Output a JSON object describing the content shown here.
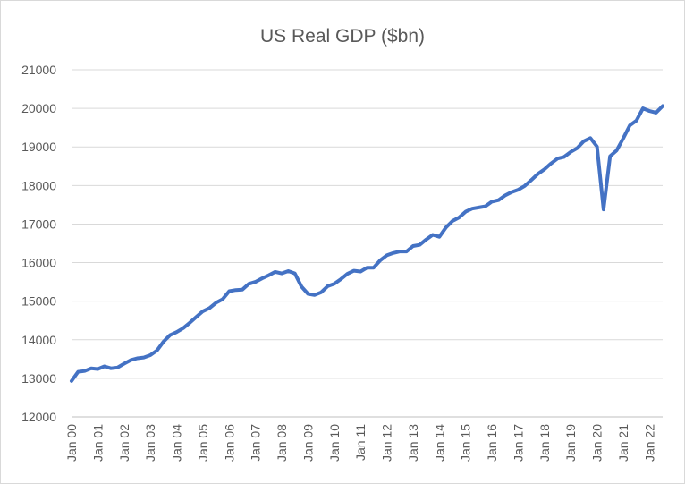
{
  "chart_data": {
    "type": "line",
    "title": "US Real GDP ($bn)",
    "xlabel": "",
    "ylabel": "",
    "ylim": [
      12000,
      21000
    ],
    "yticks": [
      12000,
      13000,
      14000,
      15000,
      16000,
      17000,
      18000,
      19000,
      20000,
      21000
    ],
    "xtick_labels": [
      "Jan 00",
      "Jan 01",
      "Jan 02",
      "Jan 03",
      "Jan 04",
      "Jan 05",
      "Jan 06",
      "Jan 07",
      "Jan 08",
      "Jan 09",
      "Jan 10",
      "Jan 11",
      "Jan 12",
      "Jan 13",
      "Jan 14",
      "Jan 15",
      "Jan 16",
      "Jan 17",
      "Jan 18",
      "Jan 19",
      "Jan 20",
      "Jan 21",
      "Jan 22"
    ],
    "grid": true,
    "legend": "none",
    "series": [
      {
        "name": "US Real GDP",
        "color": "#4472c4",
        "x": [
          "2000Q1",
          "2000Q2",
          "2000Q3",
          "2000Q4",
          "2001Q1",
          "2001Q2",
          "2001Q3",
          "2001Q4",
          "2002Q1",
          "2002Q2",
          "2002Q3",
          "2002Q4",
          "2003Q1",
          "2003Q2",
          "2003Q3",
          "2003Q4",
          "2004Q1",
          "2004Q2",
          "2004Q3",
          "2004Q4",
          "2005Q1",
          "2005Q2",
          "2005Q3",
          "2005Q4",
          "2006Q1",
          "2006Q2",
          "2006Q3",
          "2006Q4",
          "2007Q1",
          "2007Q2",
          "2007Q3",
          "2007Q4",
          "2008Q1",
          "2008Q2",
          "2008Q3",
          "2008Q4",
          "2009Q1",
          "2009Q2",
          "2009Q3",
          "2009Q4",
          "2010Q1",
          "2010Q2",
          "2010Q3",
          "2010Q4",
          "2011Q1",
          "2011Q2",
          "2011Q3",
          "2011Q4",
          "2012Q1",
          "2012Q2",
          "2012Q3",
          "2012Q4",
          "2013Q1",
          "2013Q2",
          "2013Q3",
          "2013Q4",
          "2014Q1",
          "2014Q2",
          "2014Q3",
          "2014Q4",
          "2015Q1",
          "2015Q2",
          "2015Q3",
          "2015Q4",
          "2016Q1",
          "2016Q2",
          "2016Q3",
          "2016Q4",
          "2017Q1",
          "2017Q2",
          "2017Q3",
          "2017Q4",
          "2018Q1",
          "2018Q2",
          "2018Q3",
          "2018Q4",
          "2019Q1",
          "2019Q2",
          "2019Q3",
          "2019Q4",
          "2020Q1",
          "2020Q2",
          "2020Q3",
          "2020Q4",
          "2021Q1",
          "2021Q2",
          "2021Q3",
          "2021Q4",
          "2022Q1",
          "2022Q2",
          "2022Q3"
        ],
        "values": [
          12930,
          13170,
          13190,
          13260,
          13240,
          13310,
          13260,
          13280,
          13380,
          13470,
          13520,
          13540,
          13600,
          13720,
          13950,
          14120,
          14200,
          14300,
          14440,
          14590,
          14740,
          14820,
          14960,
          15050,
          15260,
          15290,
          15300,
          15450,
          15500,
          15590,
          15670,
          15760,
          15720,
          15780,
          15720,
          15380,
          15190,
          15160,
          15230,
          15390,
          15450,
          15570,
          15710,
          15790,
          15770,
          15870,
          15870,
          16060,
          16190,
          16250,
          16290,
          16290,
          16430,
          16460,
          16600,
          16720,
          16670,
          16910,
          17080,
          17170,
          17320,
          17400,
          17430,
          17460,
          17580,
          17620,
          17740,
          17830,
          17890,
          17990,
          18140,
          18300,
          18420,
          18570,
          18700,
          18740,
          18870,
          18970,
          19150,
          19230,
          19010,
          17380,
          18760,
          18910,
          19220,
          19560,
          19680,
          20000,
          19930,
          19890,
          20060
        ]
      }
    ]
  }
}
